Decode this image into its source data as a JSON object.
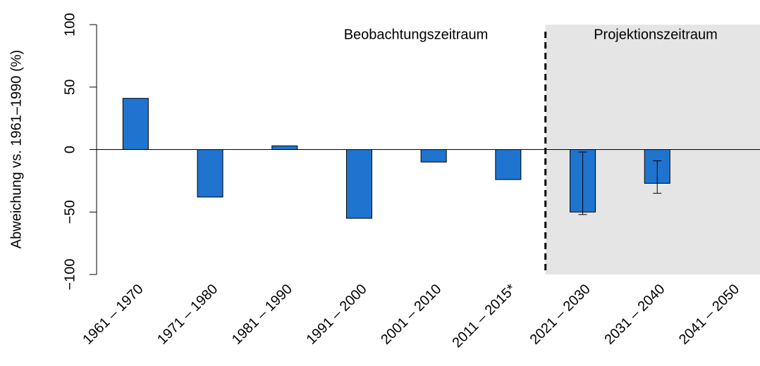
{
  "chart_data": {
    "type": "bar",
    "ylabel": "Abweichung vs. 1961–1990 (%)",
    "annotations": [
      "Beobachtungszeitraum",
      "Projektionszeitraum"
    ],
    "categories": [
      "1961 – 1970",
      "1971 – 1980",
      "1981 – 1990",
      "1991 – 2000",
      "2001 – 2010",
      "2011 – 2015*",
      "2021 – 2030",
      "2031 – 2040",
      "2041 – 2050"
    ],
    "values": [
      41,
      -38,
      3,
      -55,
      -10,
      -24,
      -50,
      -27,
      null
    ],
    "error_lower": [
      null,
      null,
      null,
      null,
      null,
      null,
      -52,
      -35,
      null
    ],
    "error_upper": [
      null,
      null,
      null,
      null,
      null,
      null,
      -2,
      -9,
      null
    ],
    "color": "#1f74cf",
    "ylim": [
      -100,
      100
    ],
    "yticks": [
      {
        "value": -100,
        "label": "−100"
      },
      {
        "value": -50,
        "label": "−50"
      },
      0,
      50,
      100
    ]
  }
}
